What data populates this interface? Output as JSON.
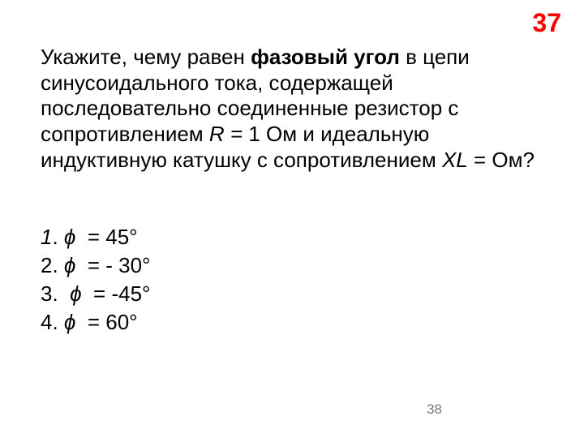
{
  "pageNumberTop": {
    "text": "37",
    "color": "#ff0000"
  },
  "question": {
    "prefix": "Укажите, чему равен ",
    "boldTerm": "фазовый угол",
    "mid1": " в цепи синусоидального тока, содержащей последовательно соединенные резистор с сопротивлением ",
    "r": "R =",
    "rVal": " 1 Ом и идеальную индуктивную катушку с сопротивлением ",
    "xl": "XL",
    "tail": "  =  Ом?",
    "color": "#000000"
  },
  "answers": {
    "items": [
      {
        "num": "1",
        "sep": ". ",
        "phi": "ϕ",
        "rest": "  = 45°",
        "numItalic": true
      },
      {
        "num": "2",
        "sep": ". ",
        "phi": "ϕ",
        "rest": "  = - 30°",
        "numItalic": false
      },
      {
        "num": "3",
        "sep": ".  ",
        "phi": "ϕ",
        "rest": "  = -45°",
        "numItalic": false
      },
      {
        "num": "4",
        "sep": ". ",
        "phi": "ϕ",
        "rest": "  = 60°",
        "numItalic": false
      }
    ],
    "color": "#000000"
  },
  "pageNumberBottom": {
    "text": "38",
    "color": "#777777"
  }
}
